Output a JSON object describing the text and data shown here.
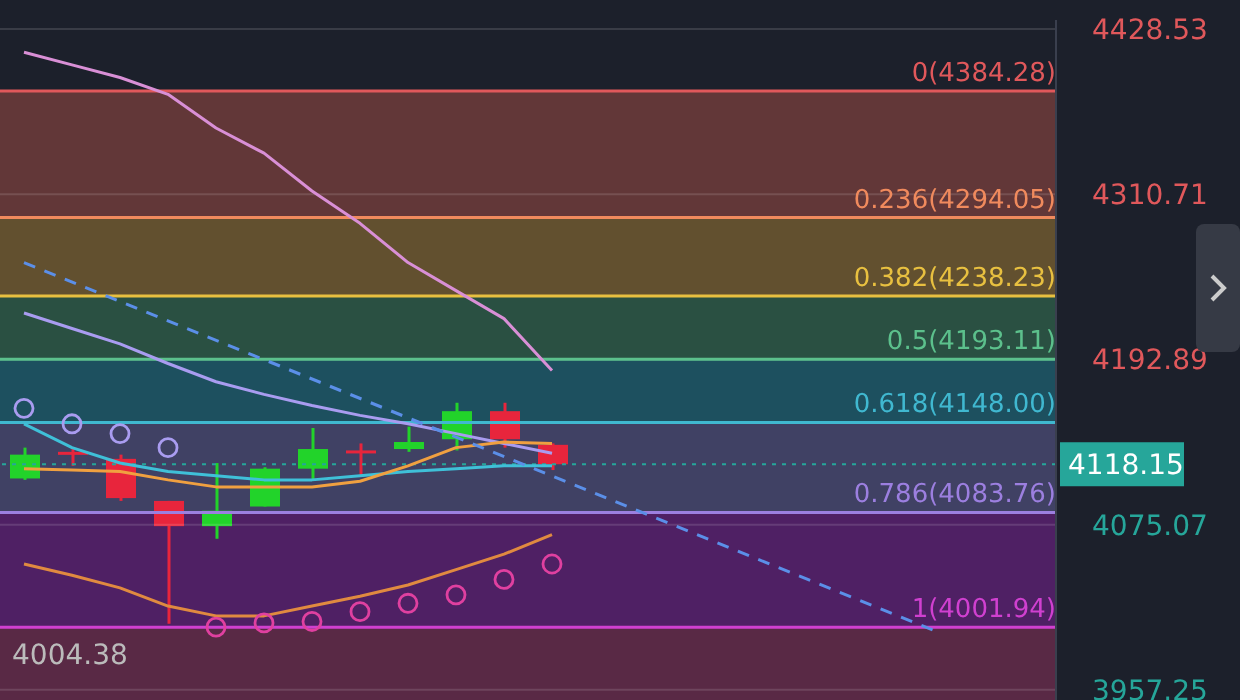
{
  "chart_data": {
    "type": "candlestick",
    "categories": [
      null,
      null,
      null,
      null,
      null,
      null,
      null,
      null,
      null,
      null,
      null,
      null,
      null,
      null,
      null,
      null,
      null,
      null,
      null,
      null,
      null,
      null
    ],
    "ohlc": [
      [
        4108,
        4130,
        4107,
        4125
      ],
      [
        4127,
        4130,
        4117,
        4126
      ],
      [
        4122,
        4125,
        4092,
        4094
      ],
      [
        4092,
        4092,
        4004.38,
        4074
      ],
      [
        4074,
        4119,
        4065,
        4085
      ],
      [
        4088,
        4116,
        4088,
        4115
      ],
      [
        4115,
        4144,
        4107,
        4129
      ],
      [
        4128,
        4133,
        4110,
        4127
      ],
      [
        4129,
        4145,
        4127,
        4134
      ],
      [
        4136,
        4162,
        4128,
        4156
      ],
      [
        4156,
        4162,
        4130,
        4136
      ],
      [
        4132,
        4133,
        4114,
        4118.15
      ],
      null,
      null,
      null,
      null,
      null,
      null,
      null,
      null,
      null,
      null
    ],
    "colors": [
      "#22d32a",
      "#e8253c",
      "#e8253c",
      "#e8253c",
      "#22d32a",
      "#22d32a",
      "#22d32a",
      "#e8253c",
      "#22d32a",
      "#22d32a",
      "#e8253c",
      "#e8253c",
      null,
      null,
      null,
      null,
      null,
      null,
      null,
      null,
      null,
      null
    ],
    "series": [
      {
        "type": "line",
        "color": "#d98fd6",
        "values": [
          4412,
          4403,
          4394,
          4382,
          4358,
          4340,
          4313,
          4290,
          4262,
          4242,
          4222,
          4185,
          null,
          null,
          null,
          null,
          null,
          null,
          null,
          null,
          null,
          null
        ]
      },
      {
        "type": "line",
        "color": "#a99cf0",
        "values": [
          4226,
          4215,
          4204,
          4190,
          4177,
          4168,
          4160,
          4153,
          4147,
          4140,
          4133,
          4126,
          null,
          null,
          null,
          null,
          null,
          null,
          null,
          null,
          null,
          null
        ]
      },
      {
        "type": "line",
        "color": "#3fc0d8",
        "values": [
          4147,
          4130,
          4119,
          4113,
          4110,
          4107,
          4107,
          4110,
          4113,
          4115,
          4117,
          4117,
          null,
          null,
          null,
          null,
          null,
          null,
          null,
          null,
          null,
          null
        ]
      },
      {
        "type": "line",
        "color": "#f0a040",
        "values": [
          4115,
          4114,
          4113,
          4107,
          4102,
          4102,
          4102,
          4106,
          4117,
          4130,
          4134,
          4133,
          null,
          null,
          null,
          null,
          null,
          null,
          null,
          null,
          null,
          null
        ]
      },
      {
        "type": "line",
        "color": "#e08a40",
        "values": [
          4047,
          4039,
          4030,
          4017,
          4010,
          4010,
          4017,
          4024,
          4032,
          4043,
          4054,
          4068,
          null,
          null,
          null,
          null,
          null,
          null,
          null,
          null,
          null,
          null
        ]
      },
      {
        "type": "line",
        "color": "#5b8fe8",
        "line_style": "dashed",
        "values": [
          4262,
          null,
          null,
          null,
          null,
          null,
          null,
          null,
          null,
          null,
          null,
          null,
          null,
          null,
          null,
          null,
          null,
          null,
          null,
          3999,
          null,
          null
        ]
      },
      {
        "type": "scatter",
        "marker": "circle",
        "color": "#a99cf0",
        "values": [
          4158,
          4147,
          4140,
          4130,
          null,
          null,
          null,
          null,
          null,
          null,
          null,
          null,
          null,
          null,
          null,
          null,
          null,
          null,
          null,
          null,
          null,
          null
        ]
      },
      {
        "type": "scatter",
        "marker": "circle",
        "color": "#e040a0",
        "values": [
          null,
          null,
          null,
          null,
          4002,
          4005,
          4006,
          4013,
          4019,
          4025,
          4036,
          4047,
          null,
          null,
          null,
          null,
          null,
          null,
          null,
          null,
          null,
          null
        ]
      }
    ],
    "ylim": [
      3950,
      4435
    ],
    "yticks": [
      3957.25,
      4075.07,
      4192.89,
      4310.71,
      4428.53
    ],
    "grid": "y",
    "tick_labels": "y",
    "ref_lines": [
      {
        "axis": "y",
        "value": 4384.28,
        "label": "0(4384.28)",
        "color": "#e0585b"
      },
      {
        "axis": "y",
        "value": 4294.05,
        "label": "0.236(4294.05)",
        "color": "#f08a5d"
      },
      {
        "axis": "y",
        "value": 4238.23,
        "label": "0.382(4238.23)",
        "color": "#e8c040"
      },
      {
        "axis": "y",
        "value": 4193.11,
        "label": "0.5(4193.11)",
        "color": "#5cc08c"
      },
      {
        "axis": "y",
        "value": 4148.0,
        "label": "0.618(4148.00)",
        "color": "#40b8d0"
      },
      {
        "axis": "y",
        "value": 4083.76,
        "label": "0.786(4083.76)",
        "color": "#9c7fe0"
      },
      {
        "axis": "y",
        "value": 4001.94,
        "label": "1(4001.94)",
        "color": "#d040d0"
      },
      {
        "axis": "y",
        "value": 4118.15,
        "label": "4118.15",
        "color": "#26a69a",
        "line_style": "dotted"
      }
    ],
    "bands": [
      {
        "axis": "y",
        "from": 4294.05,
        "to": 4384.28,
        "color": "#6a3a3a"
      },
      {
        "axis": "y",
        "from": 4238.23,
        "to": 4294.05,
        "color": "#6a5530"
      },
      {
        "axis": "y",
        "from": 4193.11,
        "to": 4238.23,
        "color": "#2c5545"
      },
      {
        "axis": "y",
        "from": 4148.0,
        "to": 4193.11,
        "color": "#1e5565"
      },
      {
        "axis": "y",
        "from": 4083.76,
        "to": 4148.0,
        "color": "#45456a"
      },
      {
        "axis": "y",
        "from": 4001.94,
        "to": 4083.76,
        "color": "#55206a"
      },
      {
        "axis": "y",
        "from": 3950,
        "to": 4001.94,
        "color": "#602a48"
      }
    ],
    "annotations": [
      {
        "text": "4004.38",
        "y": 4004.38
      }
    ]
  }
}
